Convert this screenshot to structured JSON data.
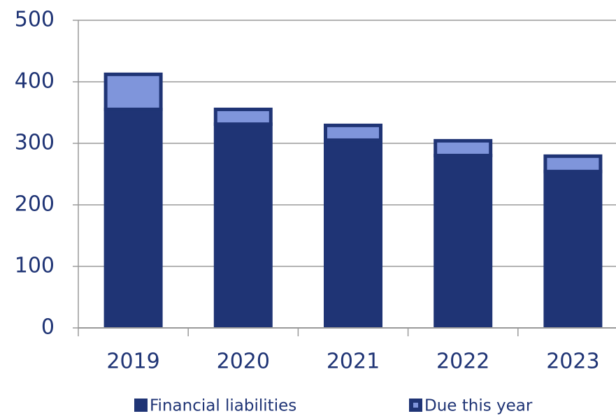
{
  "chart_data": {
    "type": "stacked_bar",
    "categories": [
      "2019",
      "2020",
      "2021",
      "2022",
      "2023"
    ],
    "series": [
      {
        "name": "Financial liabilities",
        "color": "#1f3475",
        "values": [
          358,
          334,
          308,
          283,
          257
        ]
      },
      {
        "name": "Due this year",
        "color": "#7f95db",
        "values": [
          57,
          24,
          24,
          24,
          25
        ]
      }
    ],
    "ylim": [
      0,
      500
    ],
    "yticks": [
      0,
      100,
      200,
      300,
      400,
      500
    ],
    "grid": true
  }
}
